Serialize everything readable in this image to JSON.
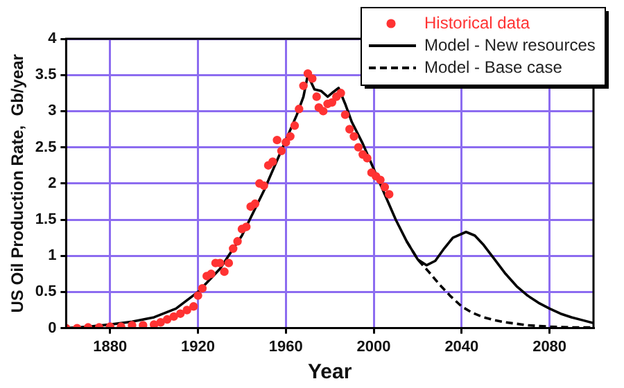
{
  "chart_data": {
    "type": "line",
    "xlabel": "Year",
    "ylabel": "US Oil Production Rate,  Gb/year",
    "xlim": [
      1860,
      2100
    ],
    "xticks": [
      1880,
      1920,
      1960,
      2000,
      2040,
      2080
    ],
    "ylim": [
      0,
      4
    ],
    "yticks": [
      0,
      0.5,
      1,
      1.5,
      2,
      2.5,
      3,
      3.5,
      4
    ],
    "grid": true,
    "legend": "top right",
    "series": [
      {
        "name": "Historical data",
        "type": "scatter",
        "color": "#ff3333",
        "marker": "circle",
        "x": [
          1860,
          1865,
          1870,
          1875,
          1880,
          1885,
          1890,
          1895,
          1900,
          1903,
          1906,
          1909,
          1912,
          1915,
          1918,
          1920,
          1922,
          1924,
          1926,
          1928,
          1930,
          1932,
          1934,
          1936,
          1938,
          1940,
          1942,
          1944,
          1946,
          1948,
          1950,
          1952,
          1954,
          1956,
          1958,
          1960,
          1962,
          1964,
          1966,
          1968,
          1970,
          1972,
          1974,
          1975,
          1977,
          1979,
          1981,
          1983,
          1985,
          1987,
          1989,
          1991,
          1993,
          1995,
          1997,
          1999,
          2001,
          2003,
          2005,
          2007
        ],
        "values": [
          0,
          0,
          0.01,
          0.01,
          0.02,
          0.02,
          0.04,
          0.04,
          0.05,
          0.08,
          0.12,
          0.16,
          0.2,
          0.25,
          0.3,
          0.45,
          0.55,
          0.72,
          0.75,
          0.9,
          0.9,
          0.78,
          0.9,
          1.1,
          1.2,
          1.37,
          1.4,
          1.68,
          1.72,
          2.0,
          1.97,
          2.25,
          2.3,
          2.6,
          2.45,
          2.57,
          2.65,
          2.8,
          3.03,
          3.35,
          3.52,
          3.45,
          3.2,
          3.05,
          3.0,
          3.1,
          3.12,
          3.2,
          3.25,
          2.95,
          2.75,
          2.65,
          2.5,
          2.4,
          2.35,
          2.15,
          2.1,
          2.05,
          1.95,
          1.85
        ]
      },
      {
        "name": "Model - New resources",
        "type": "line",
        "color": "#000000",
        "line_style": "solid",
        "x": [
          1860,
          1870,
          1880,
          1890,
          1900,
          1910,
          1920,
          1930,
          1940,
          1950,
          1960,
          1965,
          1968,
          1970,
          1973,
          1976,
          1979,
          1981,
          1984,
          1987,
          1990,
          1995,
          2000,
          2005,
          2010,
          2015,
          2020,
          2024,
          2028,
          2032,
          2036,
          2042,
          2046,
          2050,
          2055,
          2060,
          2065,
          2070,
          2075,
          2080,
          2085,
          2090,
          2095,
          2100
        ],
        "values": [
          0,
          0.02,
          0.05,
          0.09,
          0.15,
          0.27,
          0.5,
          0.82,
          1.28,
          1.9,
          2.6,
          2.95,
          3.2,
          3.5,
          3.3,
          3.28,
          3.2,
          3.25,
          3.32,
          3.1,
          2.85,
          2.55,
          2.2,
          1.85,
          1.5,
          1.2,
          0.95,
          0.87,
          0.93,
          1.1,
          1.25,
          1.33,
          1.28,
          1.15,
          0.95,
          0.75,
          0.58,
          0.45,
          0.35,
          0.27,
          0.2,
          0.15,
          0.11,
          0.07
        ]
      },
      {
        "name": "Model - Base case",
        "type": "line",
        "color": "#000000",
        "line_style": "dashed",
        "x": [
          2015,
          2020,
          2025,
          2030,
          2035,
          2040,
          2045,
          2050,
          2055,
          2060,
          2070,
          2080,
          2090,
          2100
        ],
        "values": [
          1.2,
          0.95,
          0.78,
          0.6,
          0.44,
          0.3,
          0.21,
          0.15,
          0.11,
          0.08,
          0.04,
          0.02,
          0.01,
          0.01
        ]
      }
    ]
  }
}
